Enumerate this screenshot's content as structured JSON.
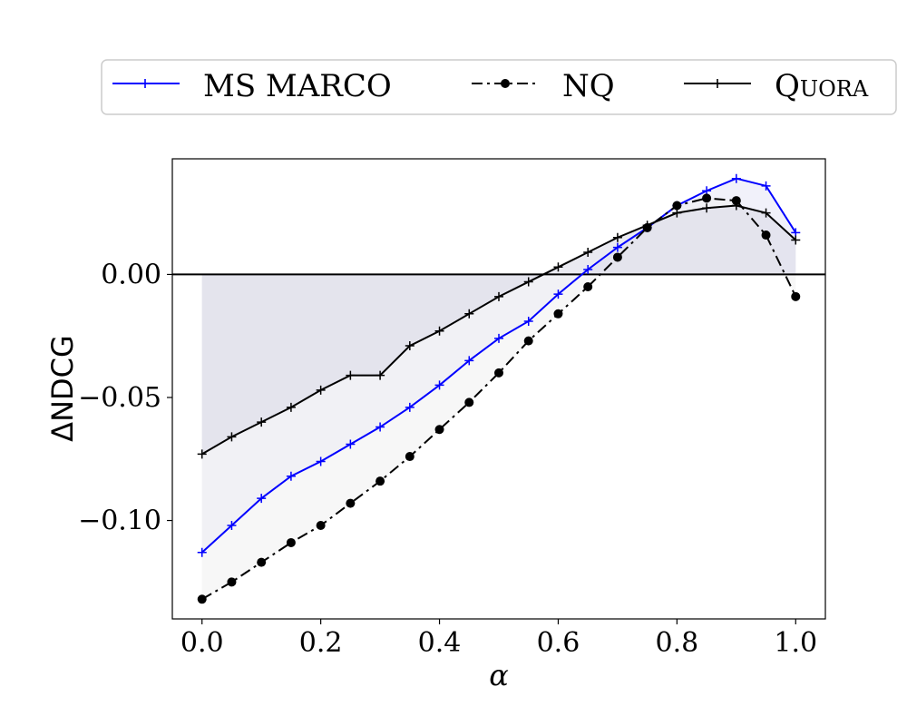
{
  "chart_data": {
    "type": "line",
    "title": "",
    "xlabel": "α",
    "ylabel": "ΔNDCG",
    "xlim": [
      -0.05,
      1.05
    ],
    "ylim": [
      -0.14,
      0.047
    ],
    "xticks": [
      0.0,
      0.2,
      0.4,
      0.6,
      0.8,
      1.0
    ],
    "xtick_labels": [
      "0.0",
      "0.2",
      "0.4",
      "0.6",
      "0.8",
      "1.0"
    ],
    "yticks": [
      -0.1,
      -0.05,
      0.0
    ],
    "ytick_labels": [
      "−0.10",
      "−0.05",
      "0.00"
    ],
    "grid": false,
    "legend_position": "top",
    "x": [
      0.0,
      0.05,
      0.1,
      0.15,
      0.2,
      0.25,
      0.3,
      0.35,
      0.4,
      0.45,
      0.5,
      0.55,
      0.6,
      0.65,
      0.7,
      0.75,
      0.8,
      0.85,
      0.9,
      0.95,
      1.0
    ],
    "series": [
      {
        "name": "MS MARCO",
        "color": "#0000ff",
        "marker": "plus",
        "linestyle": "solid",
        "fill": "#e6e6f5",
        "values": [
          -0.113,
          -0.102,
          -0.091,
          -0.082,
          -0.076,
          -0.069,
          -0.062,
          -0.054,
          -0.045,
          -0.035,
          -0.026,
          -0.019,
          -0.008,
          0.002,
          0.011,
          0.019,
          0.028,
          0.034,
          0.039,
          0.036,
          0.017
        ]
      },
      {
        "name": "NQ",
        "color": "#000000",
        "marker": "circle",
        "linestyle": "dashdot",
        "fill": "#f0f0f0",
        "values": [
          -0.132,
          -0.125,
          -0.117,
          -0.109,
          -0.102,
          -0.093,
          -0.084,
          -0.074,
          -0.063,
          -0.052,
          -0.04,
          -0.027,
          -0.016,
          -0.005,
          0.007,
          0.019,
          0.028,
          0.031,
          0.03,
          0.016,
          -0.009
        ]
      },
      {
        "name": "Quora",
        "color": "#000000",
        "marker": "plus",
        "linestyle": "solid",
        "fill": "#d9d9e6",
        "values": [
          -0.073,
          -0.066,
          -0.06,
          -0.054,
          -0.047,
          -0.041,
          -0.041,
          -0.029,
          -0.023,
          -0.016,
          -0.009,
          -0.003,
          0.003,
          0.009,
          0.015,
          0.02,
          0.025,
          0.027,
          0.028,
          0.025,
          0.014
        ]
      }
    ]
  }
}
